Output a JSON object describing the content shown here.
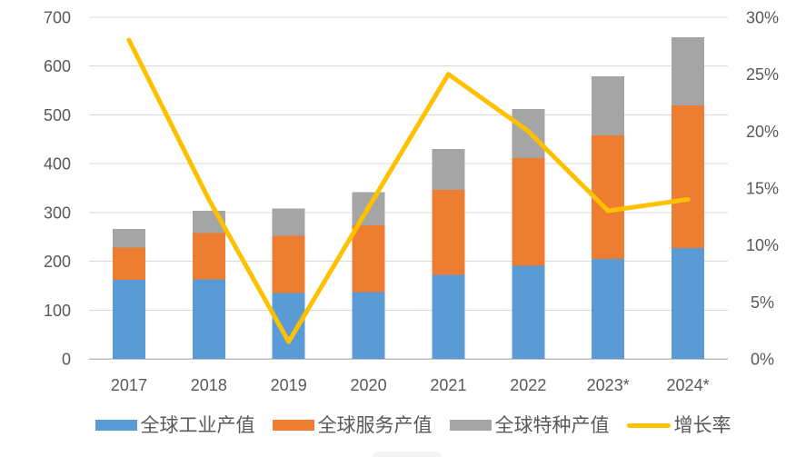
{
  "page": {
    "background": "#ffffff"
  },
  "chart_data": {
    "type": "bar",
    "subtype": "stacked-column-with-line",
    "title": "",
    "categories": [
      "2017",
      "2018",
      "2019",
      "2020",
      "2021",
      "2022",
      "2023*",
      "2024*"
    ],
    "series": [
      {
        "name": "全球工业产值",
        "kind": "bar",
        "axis": "left",
        "color": "#5B9BD5",
        "values": [
          162,
          163,
          135,
          137,
          172,
          191,
          205,
          227
        ]
      },
      {
        "name": "全球服务产值",
        "kind": "bar",
        "axis": "left",
        "color": "#ED7D31",
        "values": [
          66,
          95,
          117,
          137,
          174,
          220,
          253,
          292
        ]
      },
      {
        "name": "全球特种产值",
        "kind": "bar",
        "axis": "left",
        "color": "#A5A5A5",
        "values": [
          38,
          45,
          56,
          68,
          84,
          101,
          121,
          140
        ]
      },
      {
        "name": "增长率",
        "kind": "line",
        "axis": "right",
        "color": "#FFC000",
        "values": [
          28,
          14,
          1.5,
          13.3,
          25,
          20,
          13,
          14
        ]
      }
    ],
    "stacked": true,
    "grid": true,
    "legend_position": "bottom",
    "left_axis": {
      "min": 0,
      "max": 700,
      "step": 100,
      "labels": [
        "0",
        "100",
        "200",
        "300",
        "400",
        "500",
        "600",
        "700"
      ]
    },
    "right_axis": {
      "min": 0,
      "max": 30,
      "step": 5,
      "labels": [
        "0%",
        "5%",
        "10%",
        "15%",
        "20%",
        "25%",
        "30%"
      ],
      "unit": "%"
    },
    "colors": {
      "grid": "#D9D9D9",
      "axis_line": "#BFBFBF",
      "tick_text": "#595959"
    }
  }
}
